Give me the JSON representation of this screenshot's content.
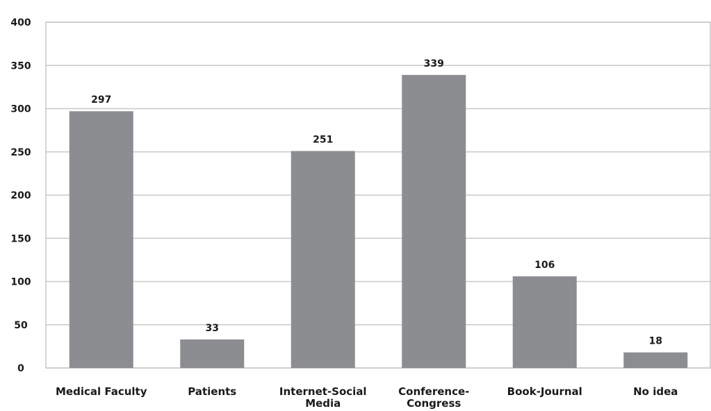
{
  "chart_data": {
    "type": "bar",
    "title": "",
    "xlabel": "",
    "ylabel": "",
    "categories": [
      [
        "Medical Faculty"
      ],
      [
        "Patients"
      ],
      [
        "Internet-Social",
        "Media"
      ],
      [
        "Conference-",
        "Congress"
      ],
      [
        "Book-Journal"
      ],
      [
        "No idea"
      ]
    ],
    "values": [
      297,
      33,
      251,
      339,
      106,
      18
    ],
    "ylim": [
      0,
      400
    ],
    "yticks": [
      0,
      50,
      100,
      150,
      200,
      250,
      300,
      350,
      400
    ],
    "grid": true,
    "legend": "none",
    "colors": {
      "bar": "#8c8d90",
      "grid": "#c8c8c8",
      "frame": "#c8c8c8",
      "text": "#1a1a1a"
    }
  }
}
